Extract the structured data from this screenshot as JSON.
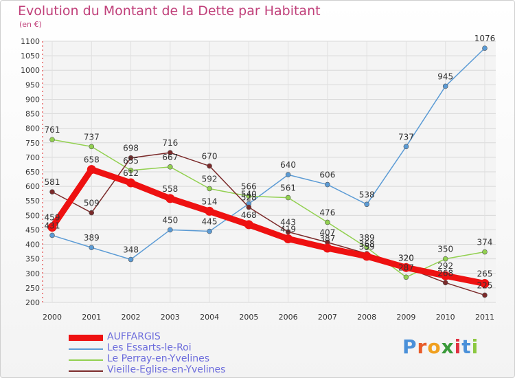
{
  "header": {
    "title": "Evolution du Montant de la Dette par Habitant",
    "unit": "(en €)"
  },
  "logo": {
    "letters": [
      "P",
      "r",
      "o",
      "x",
      "i",
      "t",
      "i"
    ],
    "colors": [
      "#4a90d9",
      "#e85c2a",
      "#f0a020",
      "#3a9a3a",
      "#e03040",
      "#4a90d9",
      "#8cc840"
    ]
  },
  "chart_data": {
    "type": "line",
    "x": [
      "2000",
      "2001",
      "2002",
      "2003",
      "2004",
      "2005",
      "2006",
      "2007",
      "2008",
      "2009",
      "2010",
      "2011"
    ],
    "ylim": [
      200,
      1100
    ],
    "yticks": [
      "200",
      "250",
      "300",
      "350",
      "400",
      "450",
      "500",
      "550",
      "600",
      "650",
      "700",
      "750",
      "800",
      "850",
      "900",
      "950",
      "1000",
      "1050",
      "1100"
    ],
    "grid": true,
    "legend_position": "bottom-left",
    "series": [
      {
        "name": "Les Essarts-le-Roi",
        "color": "#5b9bd5",
        "values": [
          431,
          389,
          348,
          450,
          445,
          540,
          640,
          606,
          538,
          737,
          945,
          1076
        ],
        "labels": [
          "431",
          "389",
          "348",
          "450",
          "445",
          "540",
          "640",
          "606",
          "538",
          "737",
          "945",
          "1076"
        ]
      },
      {
        "name": "Le Perray-en-Yvelines",
        "color": "#92d050",
        "values": [
          761,
          737,
          655,
          667,
          592,
          566,
          561,
          476,
          389,
          287,
          350,
          374
        ],
        "labels": [
          "761",
          "737",
          "655",
          "667",
          "592",
          "566",
          "561",
          "476",
          "389",
          "287",
          "350",
          "374"
        ]
      },
      {
        "name": "Vieille-Eglise-en-Yvelines",
        "color": "#7b2a2a",
        "values": [
          581,
          509,
          698,
          716,
          670,
          528,
          443,
          407,
          368,
          320,
          268,
          225
        ],
        "labels": [
          "581",
          "509",
          "698",
          "716",
          "670",
          "528",
          "443",
          "407",
          "368",
          "320",
          "268",
          "225"
        ]
      },
      {
        "name": "AUFFARGIS",
        "color": "#ee1111",
        "values": [
          459,
          658,
          612,
          558,
          514,
          468,
          419,
          387,
          359,
          320,
          292,
          265
        ],
        "labels": [
          "459",
          "658",
          "612",
          "558",
          "514",
          "468",
          "419",
          "387",
          "359",
          "320",
          "292",
          "265"
        ]
      }
    ],
    "legend": [
      "AUFFARGIS",
      "Les Essarts-le-Roi",
      "Le Perray-en-Yvelines",
      "Vieille-Eglise-en-Yvelines"
    ]
  }
}
